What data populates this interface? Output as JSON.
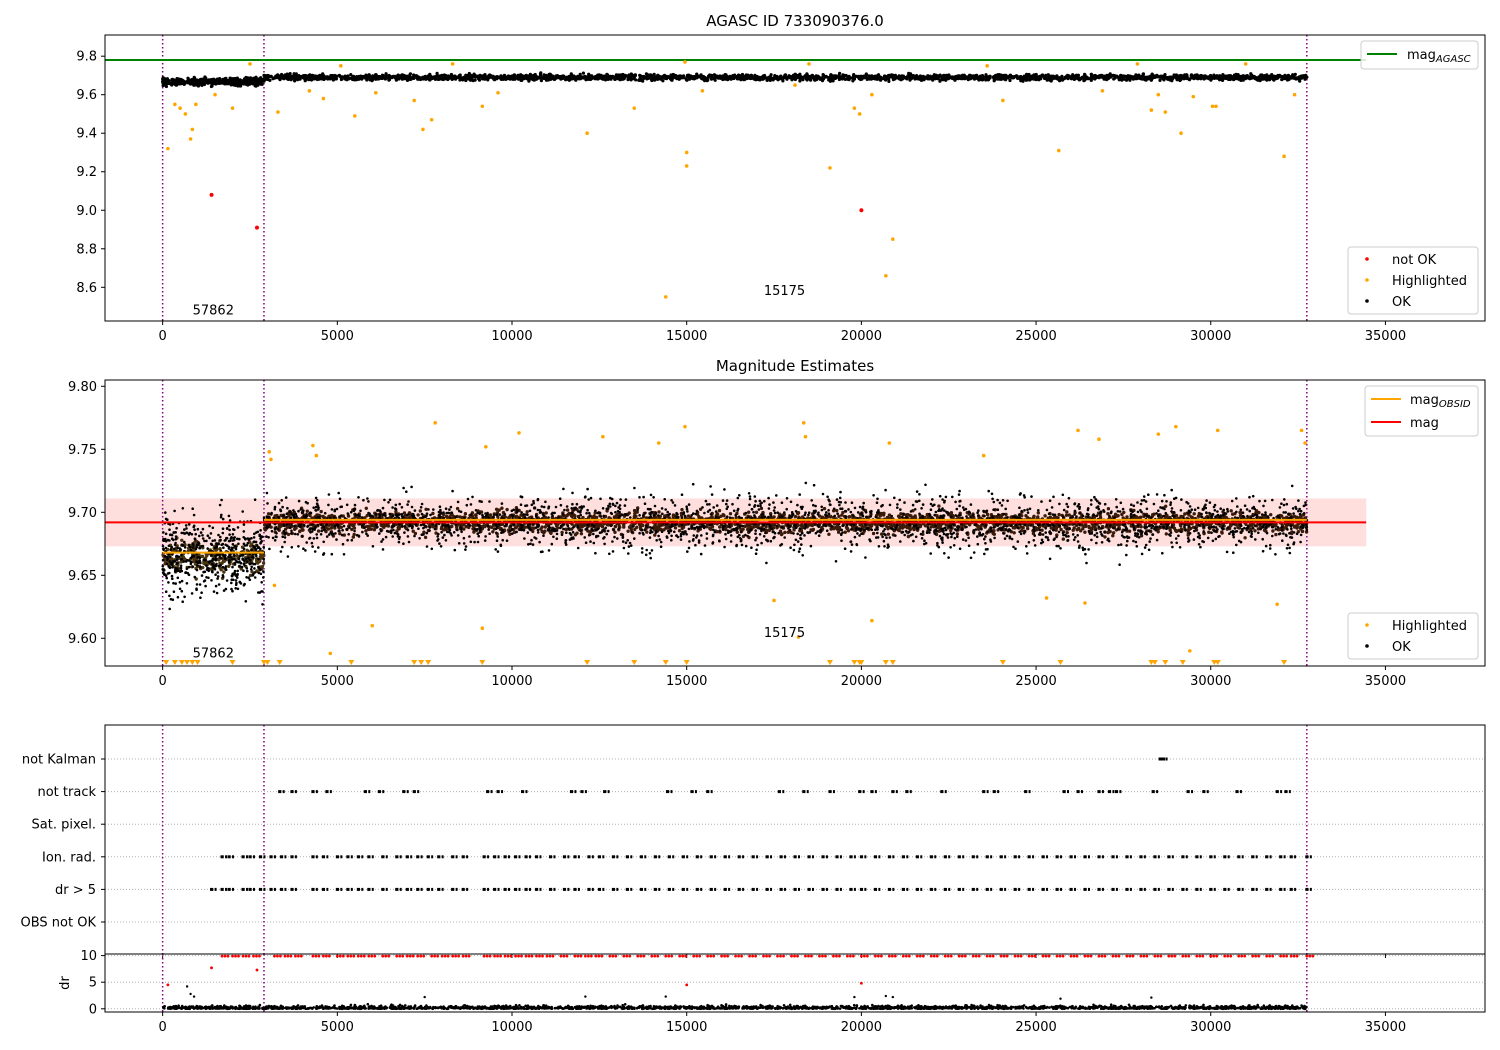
{
  "figure": {
    "panels": [
      "top",
      "middle",
      "bottom"
    ]
  },
  "chart_data": [
    {
      "type": "scatter",
      "title": "AGASC ID 733090376.0",
      "xlim": [
        -1650,
        37850
      ],
      "ylim": [
        8.425,
        9.91
      ],
      "xticks": [
        0,
        5000,
        10000,
        15000,
        20000,
        25000,
        30000,
        35000
      ],
      "yticks": [
        8.6,
        8.8,
        9.0,
        9.2,
        9.4,
        9.6,
        9.8
      ],
      "obsid_boundaries": [
        0,
        2900,
        32750
      ],
      "obsid_labels": [
        {
          "text": "57862",
          "x": 1450,
          "y": 8.48
        },
        {
          "text": "15175",
          "x": 17800,
          "y": 8.58
        }
      ],
      "hlines": [
        {
          "name": "mag_AGASC",
          "y": 9.78,
          "color": "#008000",
          "x_end": 34450
        }
      ],
      "legend_lines": [
        {
          "base": "mag",
          "sub": "AGASC",
          "color": "#008000"
        }
      ],
      "legend_points": [
        {
          "label": "not OK",
          "color": "#ff0000"
        },
        {
          "label": "Highlighted",
          "color": "#ffa500"
        },
        {
          "label": "OK",
          "color": "#000000"
        }
      ],
      "bands": [
        {
          "x": [
            0,
            2900
          ],
          "center": 9.667,
          "spread": 0.018
        },
        {
          "x": [
            2900,
            32750
          ],
          "center": 9.69,
          "spread": 0.015
        }
      ],
      "not_ok_points": [
        [
          1400,
          9.08
        ],
        [
          2700,
          8.91
        ],
        [
          20000,
          9.0
        ]
      ],
      "highlighted_points": [
        [
          150,
          9.32
        ],
        [
          350,
          9.55
        ],
        [
          500,
          9.53
        ],
        [
          650,
          9.5
        ],
        [
          800,
          9.37
        ],
        [
          850,
          9.42
        ],
        [
          950,
          9.55
        ],
        [
          1500,
          9.6
        ],
        [
          2000,
          9.53
        ],
        [
          3300,
          9.51
        ],
        [
          4200,
          9.62
        ],
        [
          4600,
          9.58
        ],
        [
          5500,
          9.49
        ],
        [
          6100,
          9.61
        ],
        [
          7200,
          9.57
        ],
        [
          7450,
          9.42
        ],
        [
          7700,
          9.47
        ],
        [
          9150,
          9.54
        ],
        [
          9600,
          9.61
        ],
        [
          12150,
          9.4
        ],
        [
          13500,
          9.53
        ],
        [
          14400,
          8.55
        ],
        [
          15000,
          9.3
        ],
        [
          15000,
          9.23
        ],
        [
          15450,
          9.62
        ],
        [
          18100,
          9.65
        ],
        [
          19100,
          9.22
        ],
        [
          19800,
          9.53
        ],
        [
          19950,
          9.5
        ],
        [
          20300,
          9.6
        ],
        [
          20700,
          8.66
        ],
        [
          20900,
          8.85
        ],
        [
          24050,
          9.57
        ],
        [
          25650,
          9.31
        ],
        [
          26900,
          9.62
        ],
        [
          28300,
          9.52
        ],
        [
          28500,
          9.6
        ],
        [
          28700,
          9.51
        ],
        [
          29150,
          9.4
        ],
        [
          29500,
          9.59
        ],
        [
          30050,
          9.54
        ],
        [
          30150,
          9.54
        ],
        [
          32100,
          9.28
        ],
        [
          32400,
          9.6
        ],
        [
          2500,
          9.76
        ],
        [
          5100,
          9.75
        ],
        [
          8300,
          9.76
        ],
        [
          14950,
          9.77
        ],
        [
          18500,
          9.76
        ],
        [
          23600,
          9.75
        ],
        [
          27900,
          9.76
        ],
        [
          31000,
          9.76
        ]
      ]
    },
    {
      "type": "scatter",
      "title": "Magnitude Estimates",
      "xlim": [
        -1650,
        37850
      ],
      "ylim": [
        9.578,
        9.805
      ],
      "xticks": [
        0,
        5000,
        10000,
        15000,
        20000,
        25000,
        30000,
        35000
      ],
      "yticks": [
        9.6,
        9.65,
        9.7,
        9.75,
        9.8
      ],
      "obsid_boundaries": [
        0,
        2900,
        32750
      ],
      "obsid_labels": [
        {
          "text": "57862",
          "x": 1450,
          "y": 9.588
        },
        {
          "text": "15175",
          "x": 17800,
          "y": 9.604
        }
      ],
      "hlines": [
        {
          "name": "mag_OBSID",
          "y": 9.668,
          "color": "#ffa500",
          "x": [
            0,
            2900
          ]
        },
        {
          "name": "mag_OBSID",
          "y": 9.694,
          "color": "#ffa500",
          "x": [
            2900,
            32750
          ]
        },
        {
          "name": "mag",
          "y": 9.692,
          "color": "#ff0000",
          "x": [
            -1650,
            34450
          ]
        }
      ],
      "mag_band": {
        "y": [
          9.673,
          9.711
        ],
        "x": [
          -1650,
          34450
        ],
        "color": "#ffb6b6"
      },
      "legend_lines": [
        {
          "base": "mag",
          "sub": "OBSID",
          "color": "#ffa500"
        },
        {
          "base": "mag",
          "sub": "",
          "color": "#ff0000"
        }
      ],
      "legend_points": [
        {
          "label": "Highlighted",
          "color": "#ffa500"
        },
        {
          "label": "OK",
          "color": "#000000"
        }
      ],
      "bands": [
        {
          "x": [
            0,
            2900
          ],
          "center": 9.666,
          "spread": 0.03
        },
        {
          "x": [
            2900,
            32750
          ],
          "center": 9.692,
          "spread": 0.022
        }
      ],
      "highlighted_points": [
        [
          3050,
          9.748
        ],
        [
          3100,
          9.742
        ],
        [
          4300,
          9.753
        ],
        [
          4400,
          9.745
        ],
        [
          6000,
          9.61
        ],
        [
          7800,
          9.771
        ],
        [
          9150,
          9.608
        ],
        [
          9250,
          9.752
        ],
        [
          10200,
          9.763
        ],
        [
          12600,
          9.76
        ],
        [
          14200,
          9.755
        ],
        [
          14950,
          9.768
        ],
        [
          17500,
          9.63
        ],
        [
          18200,
          9.601
        ],
        [
          18350,
          9.771
        ],
        [
          18400,
          9.76
        ],
        [
          20300,
          9.614
        ],
        [
          20800,
          9.755
        ],
        [
          23500,
          9.745
        ],
        [
          25300,
          9.632
        ],
        [
          26200,
          9.765
        ],
        [
          26800,
          9.758
        ],
        [
          26400,
          9.628
        ],
        [
          28500,
          9.762
        ],
        [
          29000,
          9.768
        ],
        [
          29400,
          9.59
        ],
        [
          30200,
          9.765
        ],
        [
          31900,
          9.627
        ],
        [
          32600,
          9.765
        ],
        [
          32700,
          9.755
        ],
        [
          4800,
          9.588
        ],
        [
          3200,
          9.642
        ]
      ],
      "clipped_markers_x": [
        100,
        350,
        550,
        700,
        850,
        1000,
        2000,
        2900,
        3000,
        3350,
        5400,
        7200,
        7400,
        7600,
        9150,
        12150,
        13500,
        14400,
        15000,
        19100,
        19800,
        19950,
        20000,
        20700,
        20900,
        24050,
        25700,
        28300,
        28400,
        28700,
        29200,
        30100,
        30200,
        32100
      ]
    },
    {
      "type": "scatter",
      "title": "",
      "xlim": [
        -1650,
        37850
      ],
      "xticks": [
        0,
        5000,
        10000,
        15000,
        20000,
        25000,
        30000,
        35000
      ],
      "obsid_boundaries": [
        0,
        2900,
        32750
      ],
      "flag_rows": [
        "not Kalman",
        "not track",
        "Sat. pixel.",
        "Ion. rad.",
        "dr > 5",
        "OBS not OK"
      ],
      "flag_events": {
        "not Kalman": [
          28550,
          28620
        ],
        "not track": [
          3350,
          3700,
          4300,
          4700,
          5800,
          6200,
          6900,
          7200,
          9300,
          9600,
          10300,
          11700,
          12000,
          12650,
          14450,
          15150,
          15600,
          17650,
          18350,
          19100,
          19950,
          20300,
          20900,
          21300,
          22300,
          23500,
          23800,
          24700,
          25800,
          26200,
          26800,
          27100,
          27300,
          28350,
          29350,
          29800,
          30750,
          31900,
          32150
        ],
        "Ion. rad.": [
          1700,
          1900,
          2300,
          2500,
          2800,
          3100,
          3400,
          3700,
          4300,
          4600,
          5000,
          5300,
          5600,
          5900,
          6300,
          6700,
          7000,
          7300,
          7600,
          7900,
          8300,
          8600,
          9200,
          9500,
          9800,
          10100,
          10400,
          10700,
          11100,
          11500,
          11800,
          12200,
          12500,
          12900,
          13300,
          13700,
          14100,
          14500,
          14900,
          15300,
          15700,
          16100,
          16500,
          16900,
          17300,
          17700,
          18100,
          18500,
          18900,
          19300,
          19700,
          20000,
          20400,
          20800,
          21200,
          21600,
          22000,
          22400,
          22800,
          23200,
          23600,
          24000,
          24400,
          24800,
          25200,
          25600,
          26000,
          26400,
          26800,
          27200,
          27600,
          28000,
          28400,
          28800,
          29200,
          29600,
          30000,
          30400,
          30800,
          31200,
          31600,
          32000,
          32300,
          32750
        ],
        "dr > 5": [
          1400,
          1700,
          1900,
          2300,
          2500,
          2800,
          3100,
          3400,
          3700,
          4300,
          4600,
          5000,
          5300,
          5600,
          5900,
          6300,
          6700,
          7000,
          7300,
          7600,
          7900,
          8300,
          8600,
          9200,
          9500,
          9800,
          10100,
          10400,
          10700,
          11100,
          11500,
          11800,
          12200,
          12500,
          12900,
          13300,
          13700,
          14100,
          14500,
          14900,
          15300,
          15700,
          16100,
          16500,
          16900,
          17300,
          17700,
          18100,
          18500,
          18900,
          19300,
          19700,
          20000,
          20400,
          20800,
          21200,
          21600,
          22000,
          22400,
          22800,
          23200,
          23600,
          24000,
          24400,
          24800,
          25200,
          25600,
          26000,
          26400,
          26800,
          27200,
          27600,
          28000,
          28400,
          28800,
          29200,
          29600,
          30000,
          30400,
          30800,
          31200,
          31600,
          32000,
          32300,
          32750
        ]
      }
    },
    {
      "type": "scatter",
      "title": "",
      "ylabel": "dr",
      "xlim": [
        -1650,
        37850
      ],
      "ylim": [
        -0.6,
        10.3
      ],
      "xticks": [
        0,
        5000,
        10000,
        15000,
        20000,
        25000,
        30000,
        35000
      ],
      "yticks": [
        0,
        5,
        10
      ],
      "obsid_boundaries": [
        0,
        2900,
        32750
      ],
      "clipped_x": [
        1700,
        2000,
        2300,
        2600,
        3200,
        3500,
        3800,
        4300,
        4600,
        5000,
        5300,
        5600,
        5900,
        6300,
        6700,
        7000,
        7300,
        7700,
        8000,
        8300,
        8600,
        9200,
        9500,
        9800,
        10100,
        10400,
        10700,
        11000,
        11400,
        11800,
        12100,
        12400,
        12800,
        13200,
        13600,
        14000,
        14400,
        14800,
        15200,
        15600,
        16000,
        16400,
        16800,
        17200,
        17600,
        18000,
        18400,
        18800,
        19200,
        19600,
        20000,
        20400,
        20800,
        21200,
        21600,
        22000,
        22400,
        22800,
        23200,
        23600,
        24000,
        24400,
        24800,
        25200,
        25600,
        26000,
        26400,
        26800,
        27200,
        27600,
        28000,
        28400,
        28800,
        29200,
        29600,
        30000,
        30400,
        30800,
        31200,
        31600,
        32000,
        32300,
        32750
      ],
      "large_points": [
        [
          150,
          4.5
        ],
        [
          700,
          4.2
        ],
        [
          800,
          2.8
        ],
        [
          900,
          2.3
        ],
        [
          1400,
          7.7
        ],
        [
          2700,
          7.3
        ],
        [
          15000,
          4.5
        ],
        [
          20000,
          4.8
        ],
        [
          7500,
          2.2
        ],
        [
          12100,
          2.3
        ],
        [
          14400,
          2.3
        ],
        [
          19800,
          2.2
        ],
        [
          20700,
          2.4
        ],
        [
          20900,
          2.2
        ],
        [
          28300,
          2.1
        ],
        [
          25700,
          1.9
        ]
      ]
    }
  ]
}
